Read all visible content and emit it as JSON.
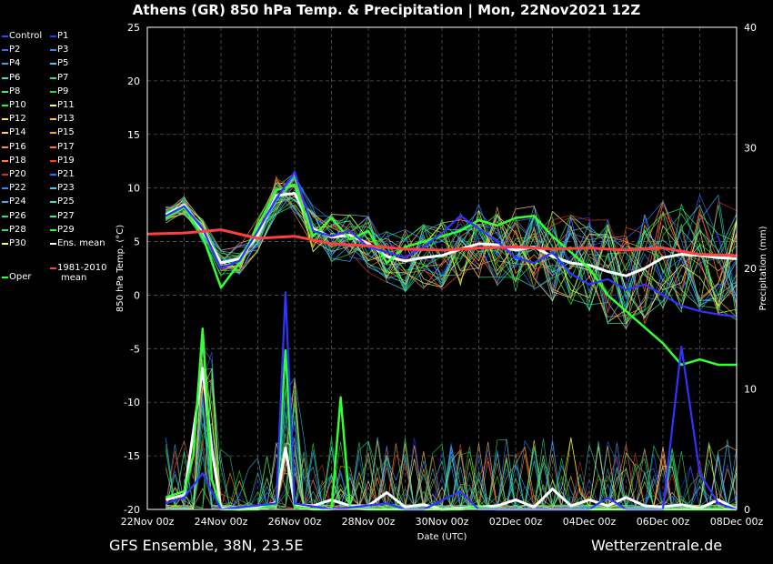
{
  "title": "Athens  (GR)  850 hPa Temp. & Precipitation | Mon, 22Nov2021 12Z",
  "footer_left": "GFS Ensemble, 38N, 23.5E",
  "footer_right": "Wetterzentrale.de",
  "colors": {
    "background": "#000000",
    "grid": "#555555",
    "ens_mean": "#ffffff",
    "oper": "#33ff33",
    "climate_mean": "#ff4040",
    "control": "#3333ff"
  },
  "legend": [
    {
      "label": "Control",
      "color": "#4040ff"
    },
    {
      "label": "P1",
      "color": "#3030ff"
    },
    {
      "label": "P2",
      "color": "#2f6cff"
    },
    {
      "label": "P3",
      "color": "#2a8cff"
    },
    {
      "label": "P4",
      "color": "#3aa0ff"
    },
    {
      "label": "P5",
      "color": "#40c8ff"
    },
    {
      "label": "P6",
      "color": "#40e0d0"
    },
    {
      "label": "P7",
      "color": "#30e090"
    },
    {
      "label": "P8",
      "color": "#40f070"
    },
    {
      "label": "P9",
      "color": "#30e030"
    },
    {
      "label": "P10",
      "color": "#20ff20"
    },
    {
      "label": "P11",
      "color": "#ffff40"
    },
    {
      "label": "P12",
      "color": "#ffe060"
    },
    {
      "label": "P13",
      "color": "#ffc040"
    },
    {
      "label": "P14",
      "color": "#ffd070"
    },
    {
      "label": "P15",
      "color": "#ffa020"
    },
    {
      "label": "P16",
      "color": "#ff9060"
    },
    {
      "label": "P17",
      "color": "#ff7040"
    },
    {
      "label": "P18",
      "color": "#ff8030"
    },
    {
      "label": "P19",
      "color": "#ff4020"
    },
    {
      "label": "P20",
      "color": "#d03020"
    },
    {
      "label": "P21",
      "color": "#2f6cff"
    },
    {
      "label": "P22",
      "color": "#2a8cff"
    },
    {
      "label": "P23",
      "color": "#40c8ff"
    },
    {
      "label": "P24",
      "color": "#3ab0ff"
    },
    {
      "label": "P25",
      "color": "#40e0d0"
    },
    {
      "label": "P26",
      "color": "#30e090"
    },
    {
      "label": "P27",
      "color": "#40f070"
    },
    {
      "label": "P28",
      "color": "#30e060"
    },
    {
      "label": "P29",
      "color": "#20ff20"
    },
    {
      "label": "P30",
      "color": "#ffff40"
    },
    {
      "label": "Ens. mean",
      "color": "#ffffff"
    },
    {
      "label": "Oper",
      "color": "#33ff33"
    },
    {
      "label": "1981-2010\nmean",
      "color": "#ff4040"
    }
  ],
  "chart_data": {
    "type": "line",
    "xlabel": "Date (UTC)",
    "ylabel_left": "850 hPa Temp. (°C)",
    "ylabel_right": "Precipitation (mm)",
    "ylim_left": [
      -20,
      25
    ],
    "ylim_right": [
      0,
      40
    ],
    "yticks_left": [
      -20,
      -15,
      -10,
      -5,
      0,
      5,
      10,
      15,
      20,
      25
    ],
    "yticks_right": [
      0,
      10,
      20,
      30,
      40
    ],
    "x_ticks": [
      "22Nov 00z",
      "24Nov 00z",
      "26Nov 00z",
      "28Nov 00z",
      "30Nov 00z",
      "02Dec 00z",
      "04Dec 00z",
      "06Dec 00z",
      "08Dec 00z"
    ],
    "x_range_hours": [
      0,
      384
    ],
    "grid": true,
    "series": [
      {
        "name": "Ens. mean",
        "kind": "temp",
        "hours": [
          12,
          24,
          36,
          48,
          60,
          72,
          84,
          96,
          108,
          120,
          132,
          144,
          156,
          168,
          180,
          192,
          204,
          216,
          228,
          240,
          252,
          264,
          276,
          288,
          300,
          312,
          324,
          336,
          348,
          360,
          372,
          384
        ],
        "values": [
          7.5,
          8.4,
          6.0,
          3.0,
          3.4,
          5.6,
          9.3,
          9.5,
          6.2,
          5.4,
          5.6,
          4.8,
          3.6,
          3.2,
          3.5,
          3.7,
          4.3,
          4.8,
          4.7,
          4.2,
          4.5,
          3.6,
          3.0,
          2.8,
          2.2,
          1.8,
          2.5,
          3.5,
          3.8,
          3.7,
          3.5,
          3.4
        ]
      },
      {
        "name": "Oper",
        "kind": "temp",
        "hours": [
          12,
          24,
          36,
          48,
          60,
          72,
          84,
          96,
          108,
          120,
          132,
          144,
          156,
          168,
          180,
          192,
          204,
          216,
          228,
          240,
          252,
          264,
          276,
          288,
          300,
          312,
          324,
          336,
          348,
          360,
          372,
          384
        ],
        "values": [
          7.2,
          8.2,
          5.5,
          0.7,
          3.0,
          6.5,
          9.8,
          10.3,
          5.5,
          7.2,
          5.2,
          6.0,
          3.0,
          4.5,
          5.0,
          5.5,
          6.0,
          7.0,
          6.5,
          7.2,
          7.4,
          5.5,
          4.0,
          2.5,
          0.0,
          -1.5,
          -3.0,
          -4.5,
          -6.5,
          -6.0,
          -6.5,
          -6.5
        ]
      },
      {
        "name": "Control",
        "kind": "temp",
        "hours": [
          12,
          24,
          36,
          48,
          60,
          72,
          84,
          96,
          108,
          120,
          132,
          144,
          156,
          168,
          180,
          192,
          204,
          216,
          228,
          240,
          252,
          264,
          276,
          288,
          300,
          312,
          324,
          336,
          348,
          360,
          372,
          384
        ],
        "values": [
          7.4,
          8.3,
          6.2,
          2.5,
          3.2,
          6.0,
          9.0,
          11.5,
          6.0,
          5.5,
          6.0,
          4.5,
          4.0,
          3.5,
          4.5,
          5.8,
          7.4,
          6.2,
          5.0,
          3.5,
          3.0,
          4.0,
          2.0,
          1.0,
          1.5,
          0.5,
          1.0,
          0.0,
          -1.0,
          -1.5,
          -1.8,
          -2.0
        ]
      },
      {
        "name": "1981-2010 mean",
        "kind": "temp",
        "hours": [
          0,
          24,
          48,
          72,
          96,
          120,
          144,
          168,
          192,
          216,
          240,
          264,
          288,
          312,
          336,
          360,
          384
        ],
        "values": [
          5.7,
          5.8,
          6.1,
          5.3,
          5.5,
          4.8,
          4.6,
          4.3,
          4.2,
          4.4,
          4.5,
          4.3,
          4.4,
          4.2,
          4.4,
          3.8,
          3.7
        ]
      },
      {
        "name": "Ens. mean precipitation",
        "kind": "precip",
        "hours": [
          12,
          24,
          36,
          42,
          48,
          60,
          72,
          84,
          90,
          96,
          108,
          120,
          132,
          144,
          156,
          168,
          180,
          192,
          204,
          216,
          228,
          240,
          252,
          264,
          276,
          288,
          300,
          312,
          324,
          336,
          348,
          360,
          372,
          384
        ],
        "values": [
          0.8,
          1.2,
          11.7,
          5.0,
          0.1,
          0.0,
          0.1,
          0.6,
          5.1,
          0.4,
          0.3,
          0.8,
          0.3,
          0.3,
          1.4,
          0.2,
          0.4,
          0.0,
          0.1,
          0.2,
          0.3,
          0.8,
          0.2,
          1.7,
          0.3,
          0.8,
          0.3,
          1.0,
          0.3,
          0.2,
          0.4,
          0.1,
          0.8,
          0.0
        ]
      },
      {
        "name": "Oper precipitation",
        "kind": "precip",
        "hours": [
          12,
          24,
          30,
          36,
          42,
          48,
          60,
          72,
          84,
          90,
          96,
          108,
          120,
          126,
          132,
          144,
          156,
          168,
          180,
          192,
          204,
          216,
          228,
          240,
          252,
          264,
          276,
          288,
          300,
          312,
          324,
          336,
          348,
          360,
          372,
          384
        ],
        "values": [
          1.0,
          1.5,
          4.5,
          15.0,
          2.5,
          0.0,
          0.0,
          0.0,
          0.5,
          13.2,
          0.2,
          0.0,
          0.0,
          9.3,
          0.1,
          0.0,
          0.0,
          0.0,
          0.0,
          0.0,
          0.0,
          0.2,
          0.0,
          0.0,
          0.0,
          0.0,
          0.0,
          0.0,
          0.0,
          0.0,
          0.0,
          0.0,
          0.0,
          0.0,
          0.0,
          0.0
        ]
      },
      {
        "name": "Control precipitation",
        "kind": "precip",
        "hours": [
          12,
          24,
          36,
          48,
          84,
          90,
          96,
          120,
          156,
          168,
          180,
          204,
          216,
          240,
          264,
          288,
          300,
          312,
          324,
          336,
          348,
          360,
          372,
          384
        ],
        "values": [
          0.5,
          1.0,
          3.0,
          0.0,
          0.5,
          18.0,
          0.5,
          0.0,
          0.5,
          0.0,
          0.0,
          1.5,
          0.0,
          0.0,
          0.0,
          0.0,
          1.0,
          0.0,
          0.0,
          0.0,
          13.5,
          3.0,
          0.5,
          0.0
        ]
      }
    ]
  }
}
